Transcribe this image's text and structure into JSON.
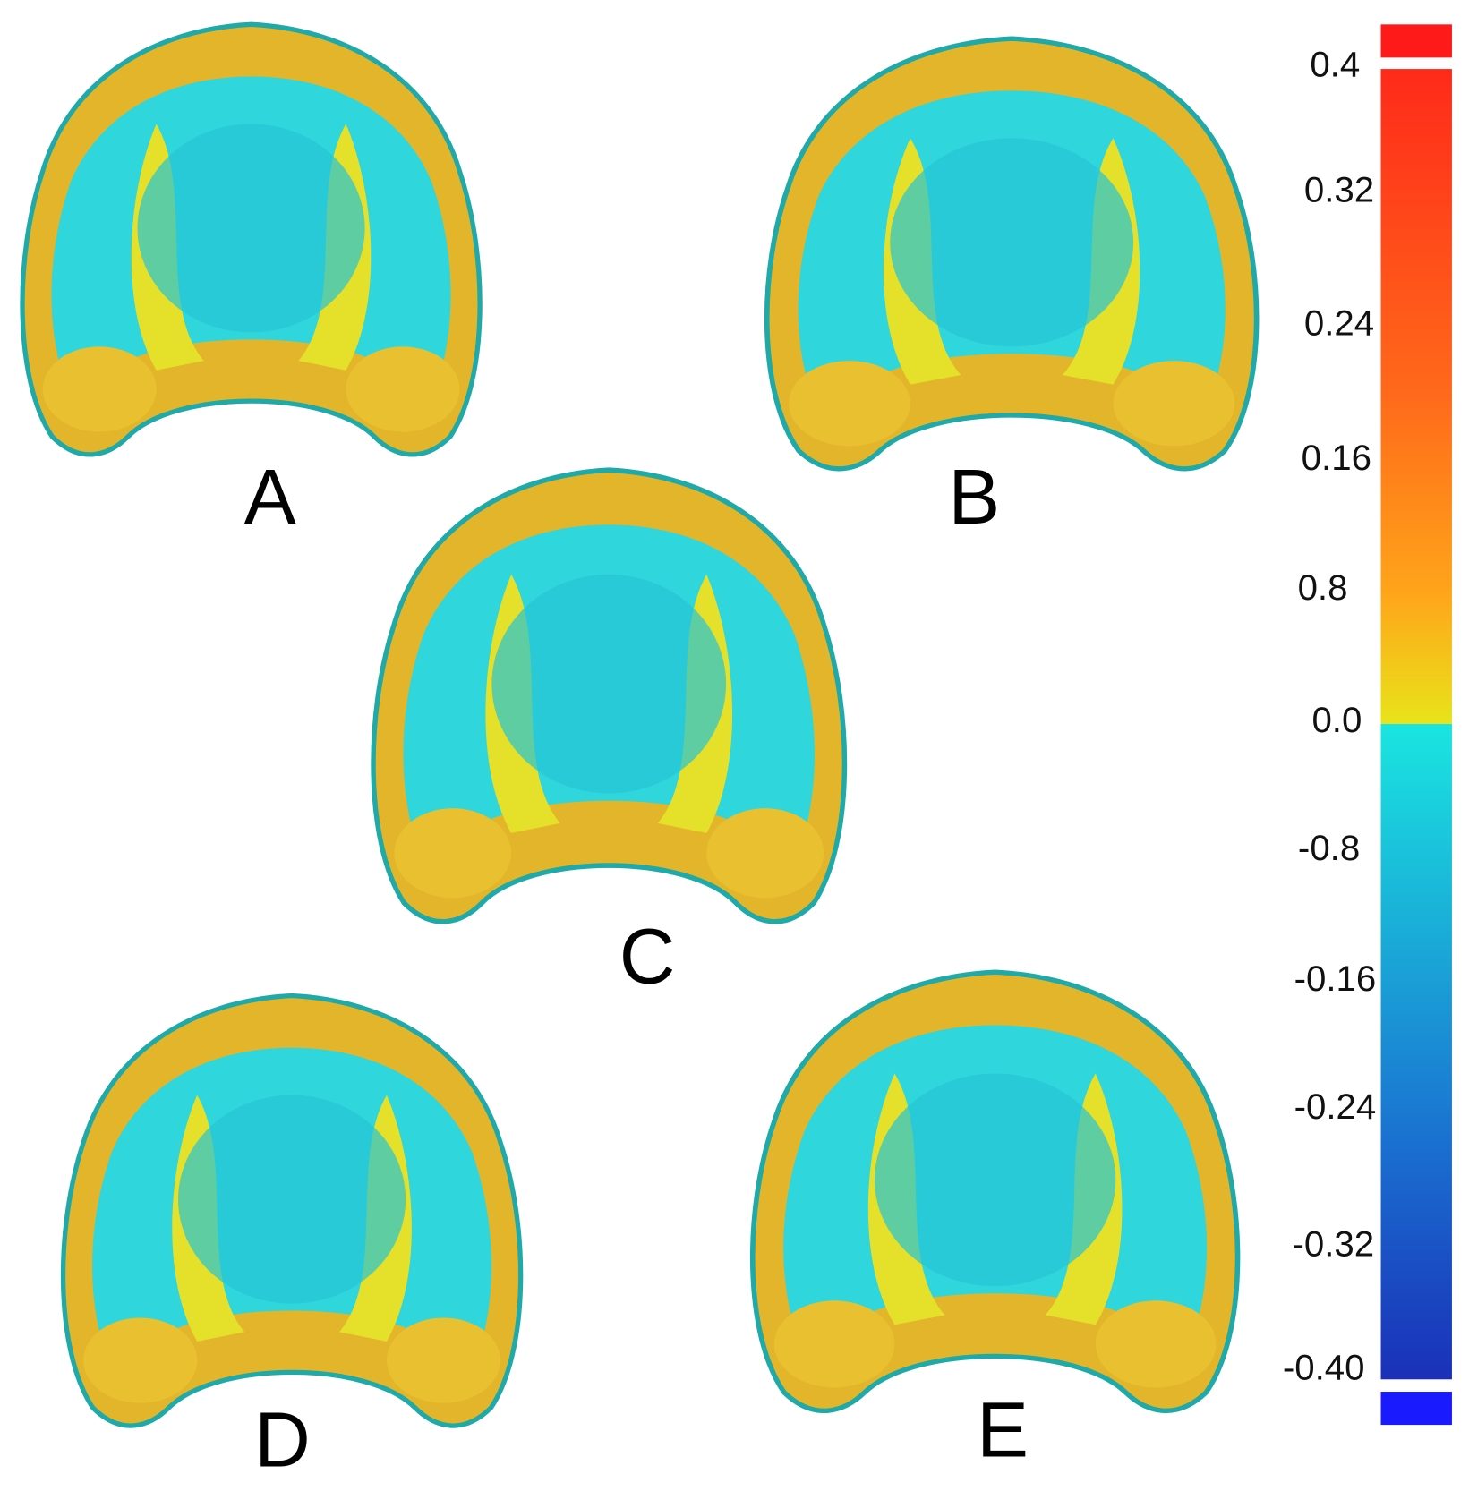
{
  "panels": [
    {
      "label": "A"
    },
    {
      "label": "B"
    },
    {
      "label": "C"
    },
    {
      "label": "D"
    },
    {
      "label": "E"
    }
  ],
  "color_scale": {
    "labels": [
      "0.4",
      "0.32",
      "0.24",
      "0.16",
      "0.8",
      "0.0",
      "-0.8",
      "-0.16",
      "-0.24",
      "-0.32",
      "-0.40"
    ]
  }
}
